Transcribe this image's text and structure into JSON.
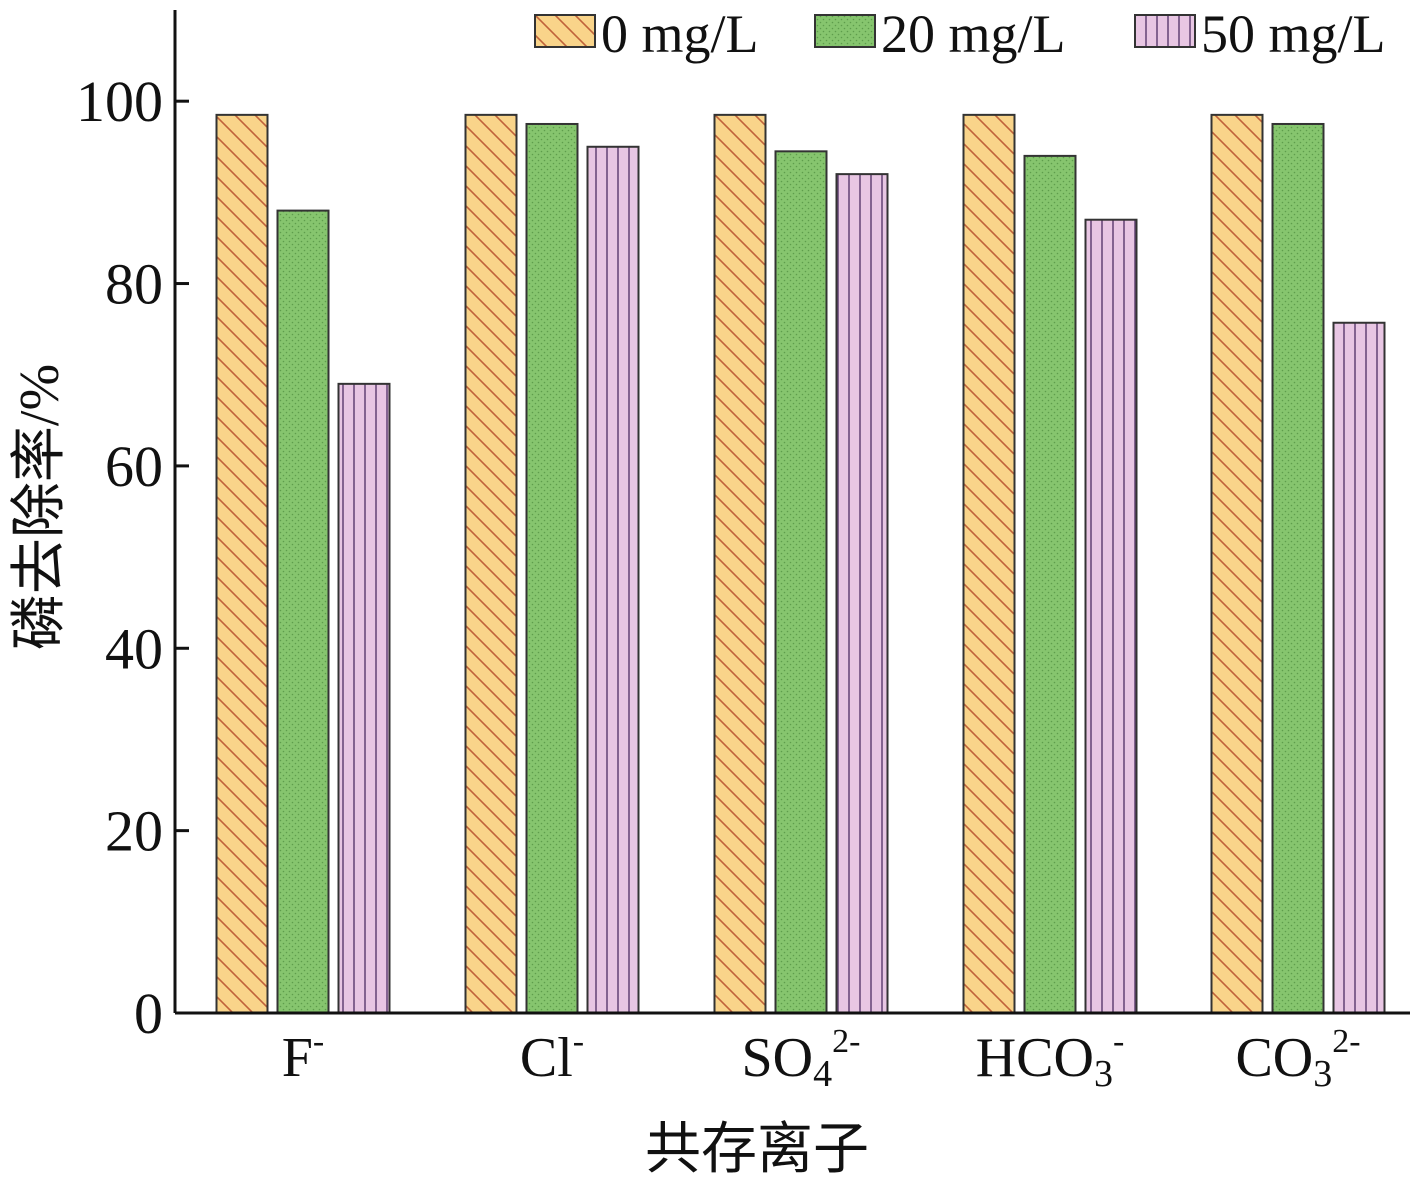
{
  "chart_data": {
    "type": "bar",
    "xlabel": "共存离子",
    "ylabel": "磷去除率/%",
    "ylim": [
      0,
      110
    ],
    "yticks": [
      0,
      20,
      40,
      60,
      80,
      100
    ],
    "grid": false,
    "legend_position": "top-right",
    "categories": [
      {
        "base": "F",
        "sub": "",
        "sup": "-"
      },
      {
        "base": "Cl",
        "sub": "",
        "sup": "-"
      },
      {
        "base": "SO",
        "sub": "4",
        "sup": "2-"
      },
      {
        "base": "HCO",
        "sub": "3",
        "sup": "-"
      },
      {
        "base": "CO",
        "sub": "3",
        "sup": "2-"
      }
    ],
    "series": [
      {
        "name": "0 mg/L",
        "values": [
          98.5,
          98.5,
          98.5,
          98.5,
          98.5
        ],
        "color": "#f9d48a",
        "stroke": "#c0623a",
        "pattern": "diagonal-hatch"
      },
      {
        "name": "20 mg/L",
        "values": [
          88.0,
          97.5,
          94.5,
          94.0,
          97.5
        ],
        "color": "#86c56e",
        "stroke": "#2c6b2c",
        "pattern": "fine-dots"
      },
      {
        "name": "50 mg/L",
        "values": [
          69.0,
          95.0,
          92.0,
          87.0,
          75.7
        ],
        "color": "#e8c6e3",
        "stroke": "#6b4a7c",
        "pattern": "vertical-stripes"
      }
    ]
  }
}
